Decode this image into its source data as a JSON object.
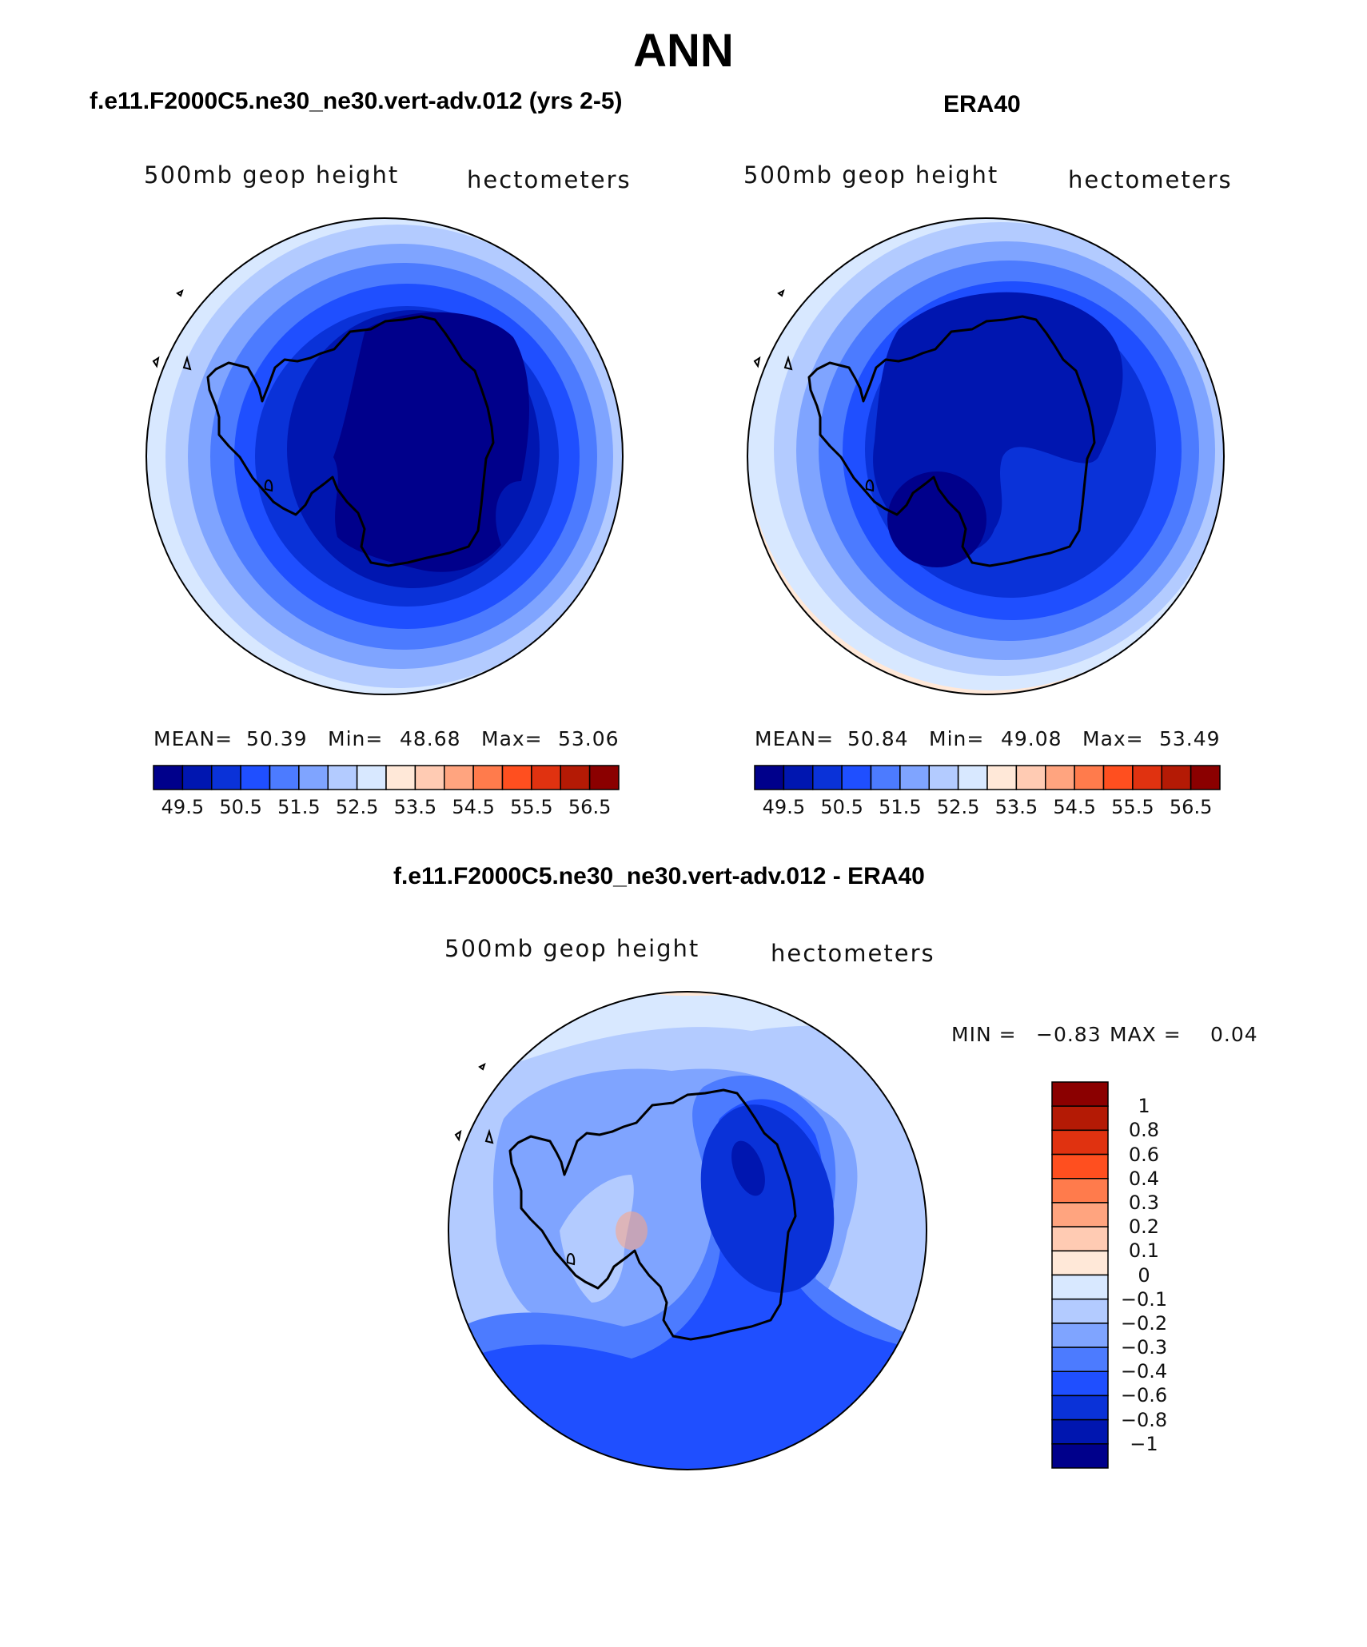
{
  "title": "ANN",
  "panels": [
    {
      "id": "model",
      "title": "f.e11.F2000C5.ne30_ne30.vert-adv.012 (yrs 2-5)",
      "variable_label": "500mb geop height",
      "units_label": "hectometers",
      "stats": {
        "mean_label": "MEAN=",
        "mean": "50.39",
        "min_label": "Min=",
        "min": "48.68",
        "max_label": "Max=",
        "max": "53.06"
      }
    },
    {
      "id": "obs",
      "title": "ERA40",
      "variable_label": "500mb geop height",
      "units_label": "hectometers",
      "stats": {
        "mean_label": "MEAN=",
        "mean": "50.84",
        "min_label": "Min=",
        "min": "49.08",
        "max_label": "Max=",
        "max": "53.49"
      }
    }
  ],
  "colorbar_abs": {
    "colors": [
      "#00008b",
      "#0016b0",
      "#0a32d8",
      "#1f4fff",
      "#4c7bff",
      "#7fa4ff",
      "#b3cbff",
      "#d8e8ff",
      "#ffe8d8",
      "#ffcbb3",
      "#ffa47f",
      "#ff7b4c",
      "#ff4f1f",
      "#e03210",
      "#b41a05",
      "#8b0000"
    ],
    "tick_labels": [
      "49.5",
      "50.5",
      "51.5",
      "52.5",
      "53.5",
      "54.5",
      "55.5",
      "56.5"
    ]
  },
  "difference": {
    "title": "f.e11.F2000C5.ne30_ne30.vert-adv.012 - ERA40",
    "variable_label": "500mb geop height",
    "units_label": "hectometers",
    "min_label": "MIN =",
    "min": "−0.83",
    "max_label": "MAX =",
    "max": "0.04",
    "colorbar": {
      "colors_top_to_bottom": [
        "#8b0000",
        "#b41a05",
        "#e03210",
        "#ff4f1f",
        "#ff7b4c",
        "#ffa47f",
        "#ffcbb3",
        "#ffe8d8",
        "#d8e8ff",
        "#b3cbff",
        "#7fa4ff",
        "#4c7bff",
        "#1f4fff",
        "#0a32d8",
        "#0016b0",
        "#00008b"
      ],
      "tick_labels": [
        "1",
        "0.8",
        "0.6",
        "0.4",
        "0.3",
        "0.2",
        "0.1",
        "0",
        "−0.1",
        "−0.2",
        "−0.3",
        "−0.4",
        "−0.6",
        "−0.8",
        "−1"
      ]
    }
  }
}
